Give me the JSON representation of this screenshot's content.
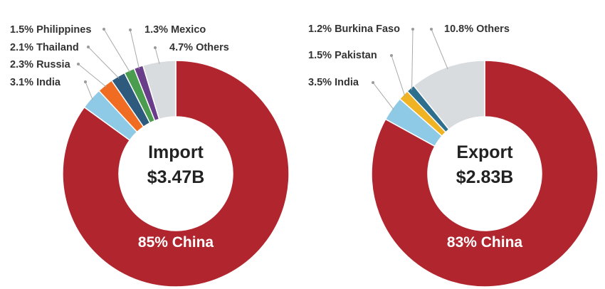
{
  "chart_data": [
    {
      "type": "pie",
      "title": "Import",
      "total": "$3.47B",
      "main_label": "85% China",
      "slices": [
        {
          "name": "China",
          "value": 85,
          "label": "85% China",
          "color": "#b1262e"
        },
        {
          "name": "India",
          "value": 3.1,
          "label": "3.1% India",
          "color": "#8ecae6"
        },
        {
          "name": "Russia",
          "value": 2.3,
          "label": "2.3% Russia",
          "color": "#ef6c22"
        },
        {
          "name": "Thailand",
          "value": 2.1,
          "label": "2.1% Thailand",
          "color": "#2e5b7d"
        },
        {
          "name": "Philippines",
          "value": 1.5,
          "label": "1.5% Philippines",
          "color": "#4a9d4e"
        },
        {
          "name": "Mexico",
          "value": 1.3,
          "label": "1.3% Mexico",
          "color": "#6a3d8a"
        },
        {
          "name": "Others",
          "value": 4.7,
          "label": "4.7% Others",
          "color": "#d9dcdf"
        }
      ]
    },
    {
      "type": "pie",
      "title": "Export",
      "total": "$2.83B",
      "main_label": "83% China",
      "slices": [
        {
          "name": "China",
          "value": 83,
          "label": "83% China",
          "color": "#b1262e"
        },
        {
          "name": "India",
          "value": 3.5,
          "label": "3.5% India",
          "color": "#8ecae6"
        },
        {
          "name": "Pakistan",
          "value": 1.5,
          "label": "1.5% Pakistan",
          "color": "#f0b323"
        },
        {
          "name": "Burkina Faso",
          "value": 1.2,
          "label": "1.2% Burkina Faso",
          "color": "#2e6f8e"
        },
        {
          "name": "Others",
          "value": 10.8,
          "label": "10.8% Others",
          "color": "#d9dcdf"
        }
      ]
    }
  ]
}
